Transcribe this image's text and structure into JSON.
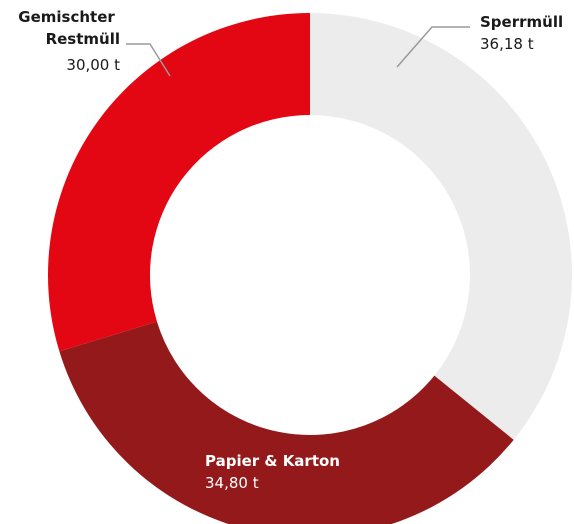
{
  "chart_data": {
    "type": "donut",
    "categories": [
      "Sperrmüll",
      "Papier & Karton",
      "Gemischter Restmüll"
    ],
    "values": [
      36.18,
      34.8,
      30.0
    ],
    "value_labels": [
      "36,18 t",
      "34,80 t",
      "30,00 t"
    ],
    "colors": [
      "#ececec",
      "#94191b",
      "#e30613"
    ]
  }
}
